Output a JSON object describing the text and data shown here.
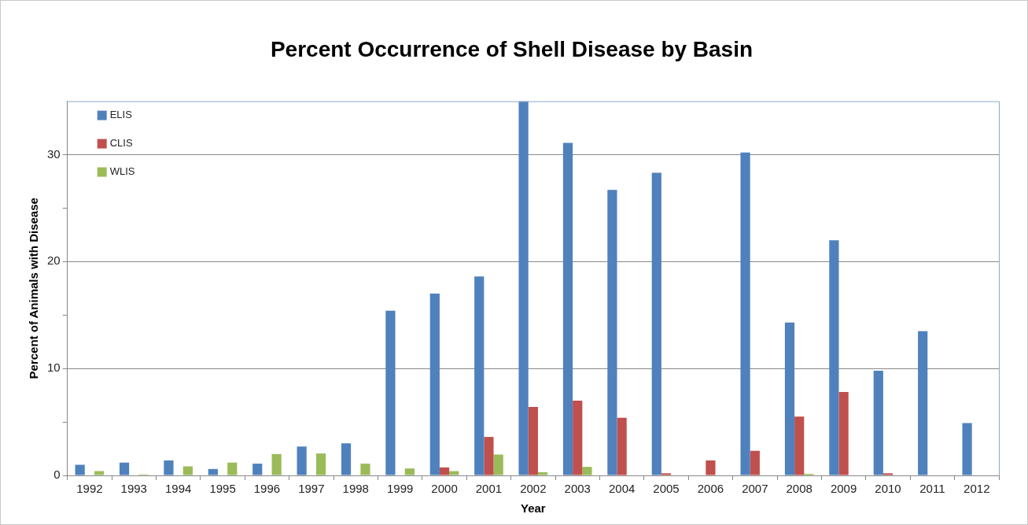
{
  "chart_data": {
    "type": "bar",
    "title": "Percent Occurrence of Shell Disease by Basin",
    "xlabel": "Year",
    "ylabel": "Percent of Animals with Disease",
    "categories": [
      "1992",
      "1993",
      "1994",
      "1995",
      "1996",
      "1997",
      "1998",
      "1999",
      "2000",
      "2001",
      "2002",
      "2003",
      "2004",
      "2005",
      "2006",
      "2007",
      "2008",
      "2009",
      "2010",
      "2011",
      "2012"
    ],
    "series": [
      {
        "name": "ELIS",
        "color": "#4f81bd",
        "values": [
          1.0,
          1.2,
          1.4,
          0.6,
          1.1,
          2.7,
          3.0,
          15.4,
          17.0,
          18.6,
          35.0,
          31.1,
          26.7,
          28.3,
          null,
          30.2,
          14.3,
          22.0,
          9.8,
          13.5,
          4.9
        ]
      },
      {
        "name": "CLIS",
        "color": "#c0504d",
        "values": [
          null,
          null,
          null,
          null,
          null,
          null,
          null,
          null,
          0.75,
          3.6,
          6.4,
          7.0,
          5.4,
          0.2,
          1.4,
          2.3,
          5.5,
          7.8,
          0.2,
          null,
          null
        ]
      },
      {
        "name": "WLIS",
        "color": "#9bbb59",
        "values": [
          0.4,
          0.1,
          0.85,
          1.2,
          2.0,
          2.05,
          1.1,
          0.65,
          0.4,
          1.95,
          0.3,
          0.8,
          null,
          null,
          null,
          null,
          0.15,
          null,
          null,
          null,
          null
        ]
      }
    ],
    "ylim": [
      0,
      35
    ],
    "yticks": [
      0,
      {
        "value": 5,
        "label": null
      },
      10,
      {
        "value": 15,
        "label": null
      },
      20,
      {
        "value": 25,
        "label": null
      },
      30
    ],
    "grid": "y",
    "legend": "top left"
  }
}
